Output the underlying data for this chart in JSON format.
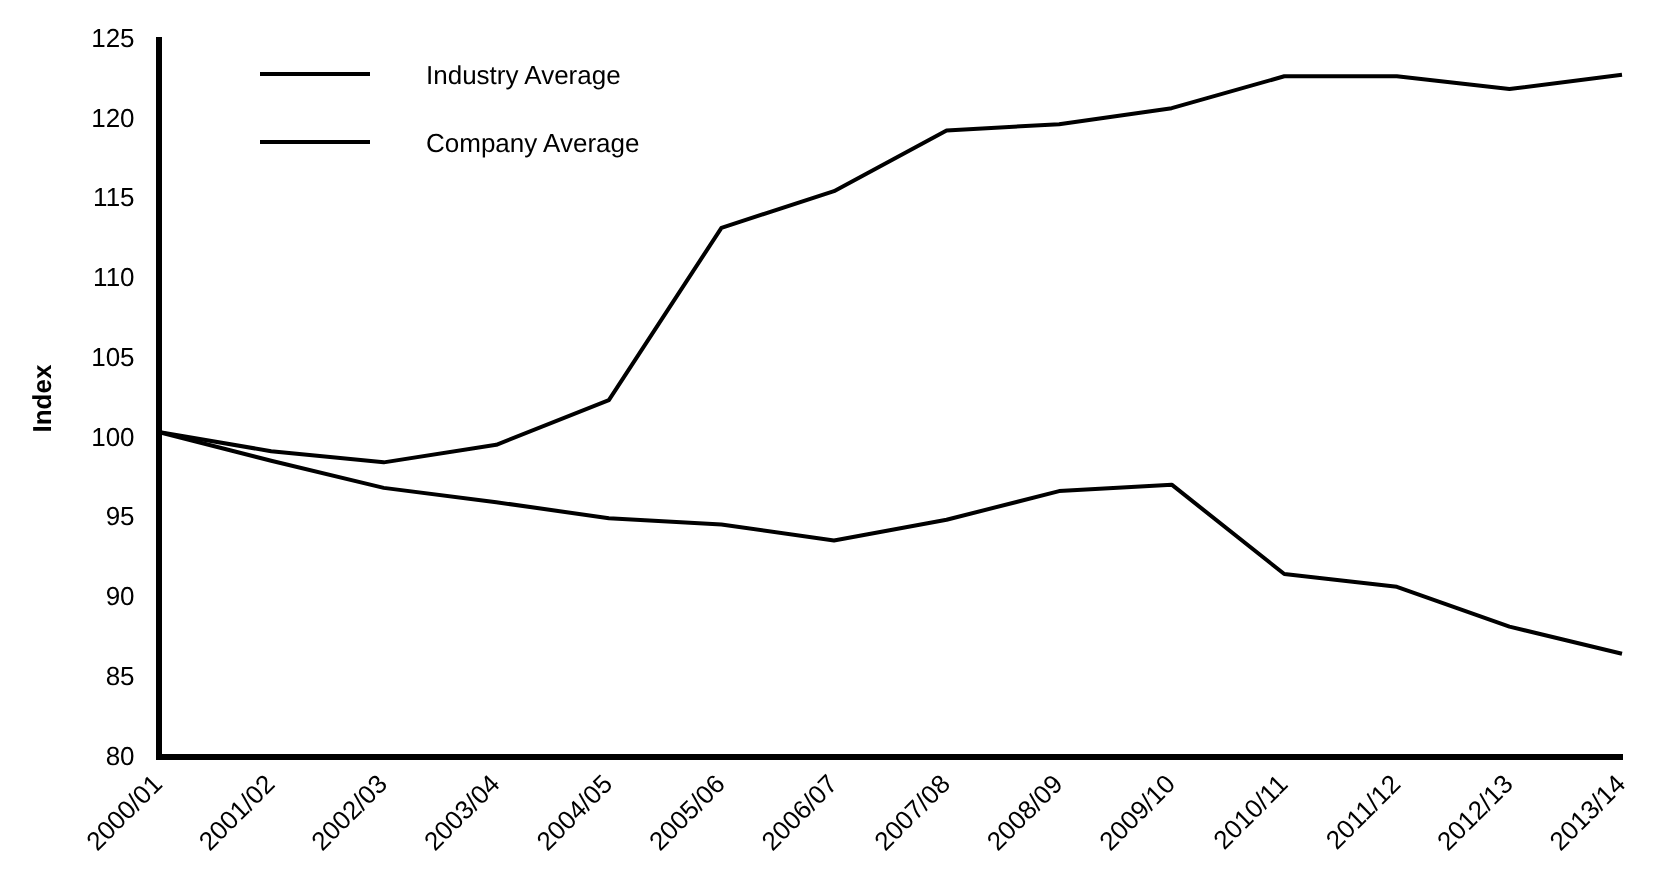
{
  "chart_data": {
    "type": "line",
    "ylabel": "Index",
    "categories": [
      "2000/01",
      "2001/02",
      "2002/03",
      "2003/04",
      "2004/05",
      "2005/06",
      "2006/07",
      "2007/08",
      "2008/09",
      "2009/10",
      "2010/11",
      "2011/12",
      "2012/13",
      "2013/14"
    ],
    "series": [
      {
        "name": "Industry Average",
        "color": "#000000",
        "values": [
          100.4,
          99.2,
          98.5,
          99.6,
          102.4,
          113.2,
          115.5,
          119.3,
          119.7,
          120.7,
          122.7,
          122.7,
          121.9,
          122.8
        ]
      },
      {
        "name": "Company Average",
        "color": "#000000",
        "values": [
          100.4,
          98.6,
          96.9,
          96.0,
          95.0,
          94.6,
          93.6,
          94.9,
          96.7,
          97.1,
          91.5,
          90.7,
          88.2,
          86.5
        ]
      }
    ],
    "ylim": [
      80,
      125
    ],
    "yticks": [
      80,
      85,
      90,
      95,
      100,
      105,
      110,
      115,
      120,
      125
    ],
    "grid": false,
    "legend": "top left",
    "marker": "none",
    "line_style": "solid"
  }
}
